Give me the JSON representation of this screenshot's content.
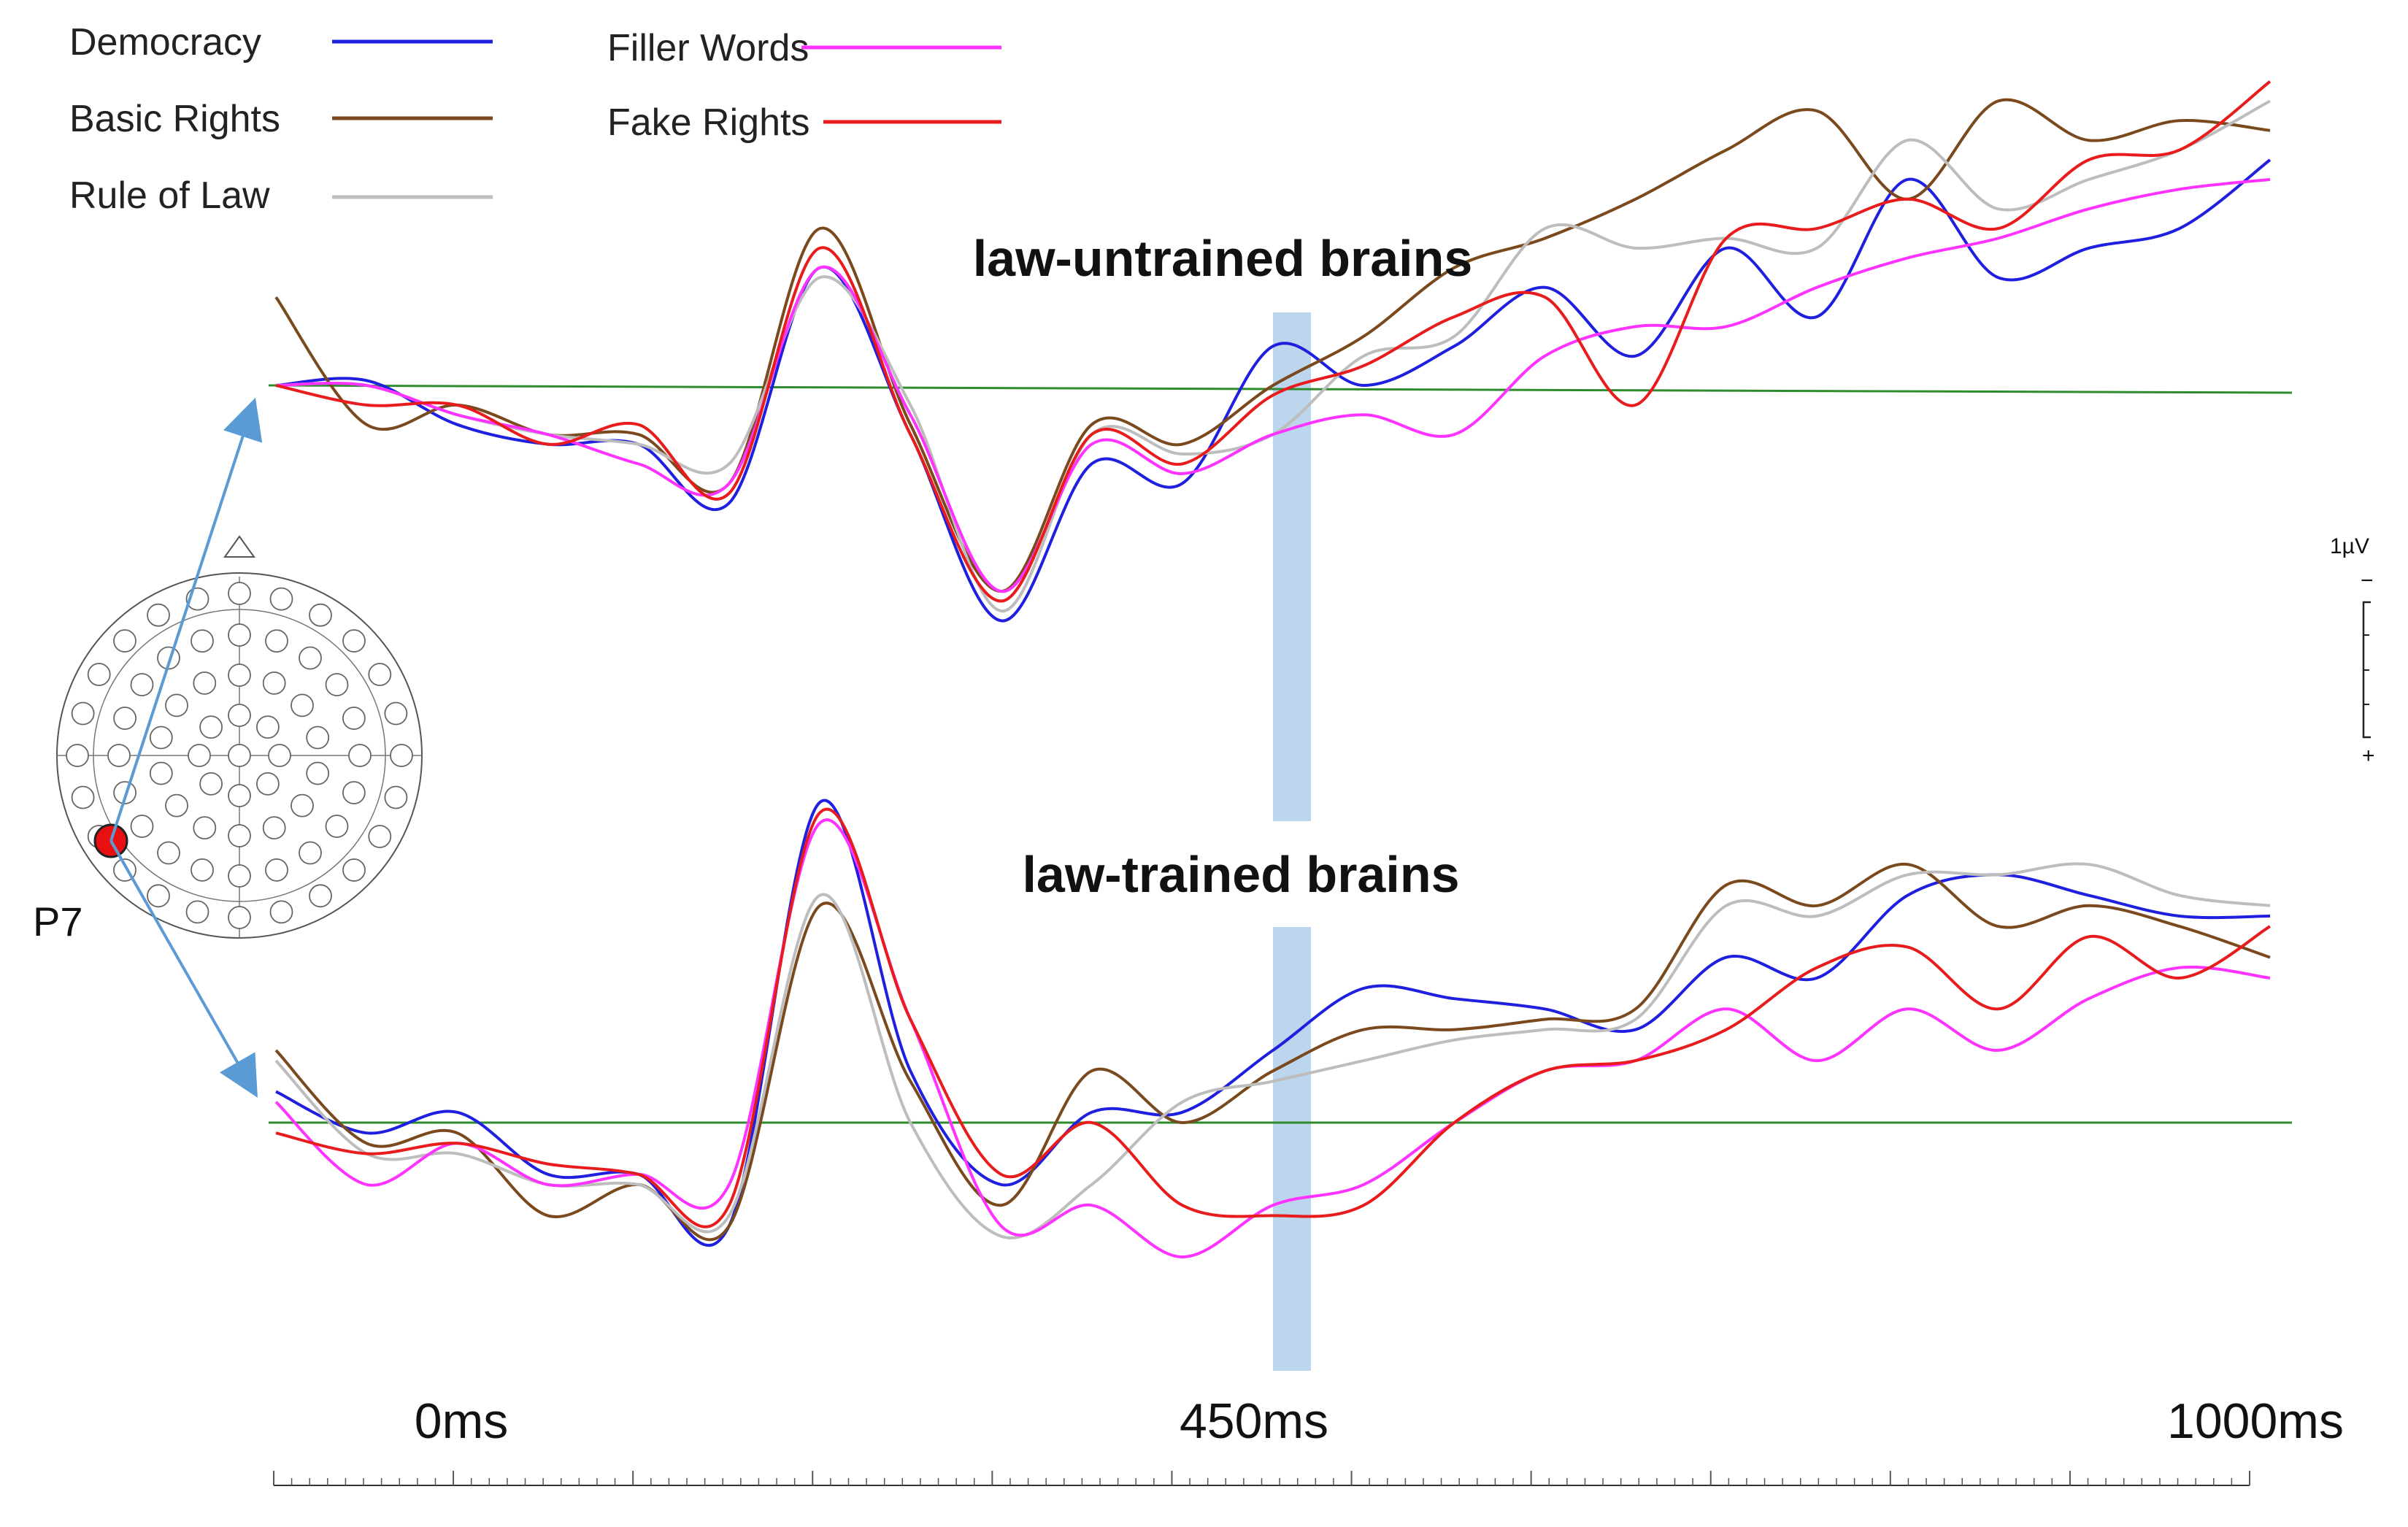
{
  "chart_data": {
    "type": "line",
    "legend": {
      "placement": "top-left",
      "entries": [
        {
          "name": "Democracy",
          "color": "#1f1fe0"
        },
        {
          "name": "Basic Rights",
          "color": "#7a4a1e"
        },
        {
          "name": "Rule of Law",
          "color": "#bdbdbd"
        },
        {
          "name": "Filler Words",
          "color": "#ff33ff"
        },
        {
          "name": "Fake Rights",
          "color": "#e81c1c"
        }
      ]
    },
    "x_ticks": [
      "0ms",
      "450ms",
      "1000ms"
    ],
    "xlim_ms": [
      -100,
      1000
    ],
    "highlight_window_ms": [
      450,
      470
    ],
    "baseline_color": "#2e8b2e",
    "highlight_color": "#bcd6ee",
    "electrode": "P7",
    "scale_bar": {
      "label": "1µV",
      "minus": "−",
      "plus": "+"
    },
    "panels": [
      {
        "title": "law-untrained brains",
        "ylim_uv": [
          -3.5,
          3.2
        ],
        "series": [
          {
            "name": "Democracy",
            "color": "#1f1fe0",
            "x": [
              -100,
              -50,
              0,
              50,
              100,
              150,
              200,
              250,
              300,
              350,
              400,
              450,
              500,
              550,
              600,
              650,
              700,
              750,
              800,
              850,
              900,
              950,
              1000
            ],
            "y": [
              0,
              0.05,
              -0.4,
              -0.6,
              -0.6,
              -1.2,
              1.2,
              -0.5,
              -2.4,
              -0.8,
              -1,
              0.4,
              0,
              0.4,
              1,
              0.3,
              1.4,
              0.7,
              2.1,
              1.1,
              1.4,
              1.6,
              2.3
            ]
          },
          {
            "name": "Basic Rights",
            "color": "#7a4a1e",
            "x": [
              -100,
              -50,
              0,
              50,
              100,
              150,
              200,
              250,
              300,
              350,
              400,
              450,
              500,
              550,
              600,
              650,
              700,
              750,
              800,
              850,
              900,
              950,
              1000
            ],
            "y": [
              0.9,
              -0.4,
              -0.2,
              -0.5,
              -0.5,
              -1,
              1.6,
              -0.4,
              -2.1,
              -0.4,
              -0.6,
              0,
              0.5,
              1.2,
              1.5,
              1.9,
              2.4,
              2.8,
              1.9,
              2.9,
              2.5,
              2.7,
              2.6
            ]
          },
          {
            "name": "Rule of Law",
            "color": "#bdbdbd",
            "x": [
              -100,
              -50,
              0,
              50,
              100,
              150,
              200,
              250,
              300,
              350,
              400,
              450,
              500,
              550,
              600,
              650,
              700,
              750,
              800,
              850,
              900,
              950,
              1000
            ],
            "y": [
              0,
              0,
              -0.3,
              -0.5,
              -0.6,
              -0.8,
              1.1,
              -0.2,
              -2.3,
              -0.5,
              -0.7,
              -0.5,
              0.3,
              0.5,
              1.6,
              1.4,
              1.5,
              1.4,
              2.5,
              1.8,
              2.1,
              2.4,
              2.9
            ]
          },
          {
            "name": "Filler Words",
            "color": "#ff33ff",
            "x": [
              -100,
              -50,
              0,
              50,
              100,
              150,
              200,
              250,
              300,
              350,
              400,
              450,
              500,
              550,
              600,
              650,
              700,
              750,
              800,
              850,
              900,
              950,
              1000
            ],
            "y": [
              0,
              0,
              -0.3,
              -0.5,
              -0.8,
              -1,
              1.2,
              -0.3,
              -2.1,
              -0.6,
              -0.9,
              -0.5,
              -0.3,
              -0.5,
              0.3,
              0.6,
              0.6,
              1,
              1.3,
              1.5,
              1.8,
              2,
              2.1
            ]
          },
          {
            "name": "Fake Rights",
            "color": "#e81c1c",
            "x": [
              -100,
              -50,
              0,
              50,
              100,
              150,
              200,
              250,
              300,
              350,
              400,
              450,
              500,
              550,
              600,
              650,
              700,
              750,
              800,
              850,
              900,
              950,
              1000
            ],
            "y": [
              0,
              -0.2,
              -0.2,
              -0.6,
              -0.4,
              -1.1,
              1.4,
              -0.5,
              -2.2,
              -0.5,
              -0.8,
              -0.1,
              0.2,
              0.7,
              0.9,
              -0.2,
              1.5,
              1.6,
              1.9,
              1.6,
              2.3,
              2.4,
              3.1
            ]
          }
        ]
      },
      {
        "title": "law-trained brains",
        "ylim_uv": [
          -2,
          3.3
        ],
        "series": [
          {
            "name": "Democracy",
            "color": "#1f1fe0",
            "x": [
              -100,
              -50,
              0,
              50,
              100,
              150,
              200,
              250,
              300,
              350,
              400,
              450,
              500,
              550,
              600,
              650,
              700,
              750,
              800,
              850,
              900,
              950,
              1000
            ],
            "y": [
              0.3,
              -0.1,
              0.1,
              -0.5,
              -0.5,
              -1,
              3.1,
              0.5,
              -0.6,
              0.1,
              0.1,
              0.7,
              1.3,
              1.2,
              1.1,
              0.9,
              1.6,
              1.4,
              2.2,
              2.4,
              2.2,
              2,
              2
            ]
          },
          {
            "name": "Basic Rights",
            "color": "#7a4a1e",
            "x": [
              -100,
              -50,
              0,
              50,
              100,
              150,
              200,
              250,
              300,
              350,
              400,
              450,
              500,
              550,
              600,
              650,
              700,
              750,
              800,
              850,
              900,
              950,
              1000
            ],
            "y": [
              0.7,
              -0.2,
              -0.1,
              -0.9,
              -0.6,
              -1,
              2.1,
              0.4,
              -0.8,
              0.5,
              0,
              0.5,
              0.9,
              0.9,
              1,
              1.1,
              2.3,
              2.1,
              2.5,
              1.9,
              2.1,
              1.9,
              1.6
            ]
          },
          {
            "name": "Rule of Law",
            "color": "#bdbdbd",
            "x": [
              -100,
              -50,
              0,
              50,
              100,
              150,
              200,
              250,
              300,
              350,
              400,
              450,
              500,
              550,
              600,
              650,
              700,
              750,
              800,
              850,
              900,
              950,
              1000
            ],
            "y": [
              0.6,
              -0.3,
              -0.3,
              -0.6,
              -0.6,
              -0.9,
              2.2,
              0,
              -1.1,
              -0.6,
              0.2,
              0.4,
              0.6,
              0.8,
              0.9,
              1,
              2.1,
              2,
              2.4,
              2.4,
              2.5,
              2.2,
              2.1
            ]
          },
          {
            "name": "Filler Words",
            "color": "#ff33ff",
            "x": [
              -100,
              -50,
              0,
              50,
              100,
              150,
              200,
              250,
              300,
              350,
              400,
              450,
              500,
              550,
              600,
              650,
              700,
              750,
              800,
              850,
              900,
              950,
              1000
            ],
            "y": [
              0.2,
              -0.6,
              -0.2,
              -0.6,
              -0.5,
              -0.6,
              2.9,
              1,
              -1,
              -0.8,
              -1.3,
              -0.8,
              -0.6,
              0,
              0.5,
              0.6,
              1.1,
              0.6,
              1.1,
              0.7,
              1.2,
              1.5,
              1.4
            ]
          },
          {
            "name": "Fake Rights",
            "color": "#e81c1c",
            "x": [
              -100,
              -50,
              0,
              50,
              100,
              150,
              200,
              250,
              300,
              350,
              400,
              450,
              500,
              550,
              600,
              650,
              700,
              750,
              800,
              850,
              900,
              950,
              1000
            ],
            "y": [
              -0.1,
              -0.3,
              -0.2,
              -0.4,
              -0.5,
              -0.8,
              3,
              1,
              -0.5,
              0,
              -0.8,
              -0.9,
              -0.8,
              0,
              0.5,
              0.6,
              0.9,
              1.5,
              1.7,
              1.1,
              1.8,
              1.4,
              1.9
            ]
          }
        ]
      }
    ]
  }
}
